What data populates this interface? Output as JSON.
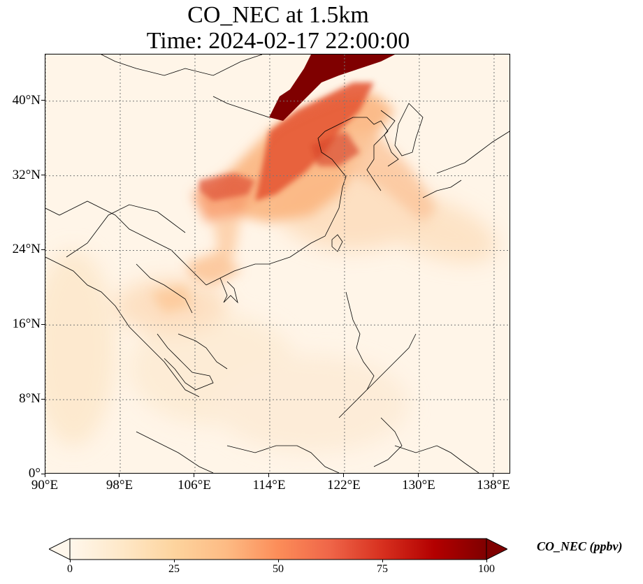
{
  "title": {
    "line1": "CO_NEC at 1.5km",
    "line2": "Time: 2024-02-17 22:00:00"
  },
  "map": {
    "extent": {
      "lon_min": 90,
      "lon_max": 139.8,
      "lat_min": 0,
      "lat_max": 45
    },
    "lat_ticks": [
      {
        "value": 40,
        "label": "40°N"
      },
      {
        "value": 32,
        "label": "32°N"
      },
      {
        "value": 24,
        "label": "24°N"
      },
      {
        "value": 16,
        "label": "16°N"
      },
      {
        "value": 8,
        "label": "8°N"
      },
      {
        "value": 0,
        "label": "0°"
      }
    ],
    "lon_ticks": [
      {
        "value": 90,
        "label": "90°E"
      },
      {
        "value": 98,
        "label": "98°E"
      },
      {
        "value": 106,
        "label": "106°E"
      },
      {
        "value": 114,
        "label": "114°E"
      },
      {
        "value": 122,
        "label": "122°E"
      },
      {
        "value": 130,
        "label": "130°E"
      },
      {
        "value": 138,
        "label": "138°E"
      }
    ],
    "gridlines": "dotted",
    "colormap": "OrRd"
  },
  "colorbar": {
    "label": "CO_NEC (ppbv)",
    "min": 0,
    "max": 100,
    "extend": "both",
    "ticks": [
      {
        "value": 0,
        "label": "0"
      },
      {
        "value": 25,
        "label": "25"
      },
      {
        "value": 50,
        "label": "50"
      },
      {
        "value": 75,
        "label": "75"
      },
      {
        "value": 100,
        "label": "100"
      }
    ],
    "colors": [
      "#fff7ec",
      "#fee8c8",
      "#fdd49e",
      "#fdbb84",
      "#fc8d59",
      "#ef6548",
      "#d7301f",
      "#b30000",
      "#7f0000"
    ]
  }
}
